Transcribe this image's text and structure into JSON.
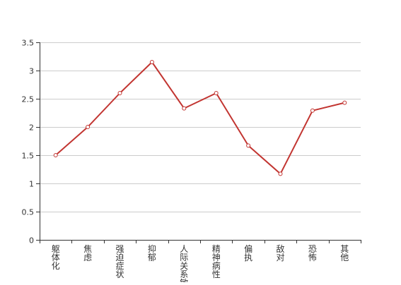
{
  "chart_data": {
    "type": "line",
    "title": "",
    "xlabel": "",
    "ylabel": "",
    "categories": [
      "躯体化",
      "焦虑",
      "强迫症状",
      "抑郁",
      "人际关系敏感",
      "精神病性",
      "偏执",
      "敌对",
      "恐怖",
      "其他"
    ],
    "series": [
      {
        "values": [
          1.5,
          2.0,
          2.6,
          3.15,
          2.33,
          2.6,
          1.67,
          1.17,
          2.29,
          2.43
        ]
      }
    ],
    "ylim": [
      0,
      3.5
    ],
    "yticks": [
      "0",
      "0.5",
      "1",
      "1.5",
      "2",
      "2.5",
      "3",
      "3.5"
    ],
    "grid": true,
    "colors": {
      "line": "#c23531",
      "grid": "#cccccc",
      "axis": "#333333",
      "label": "#333333"
    }
  }
}
